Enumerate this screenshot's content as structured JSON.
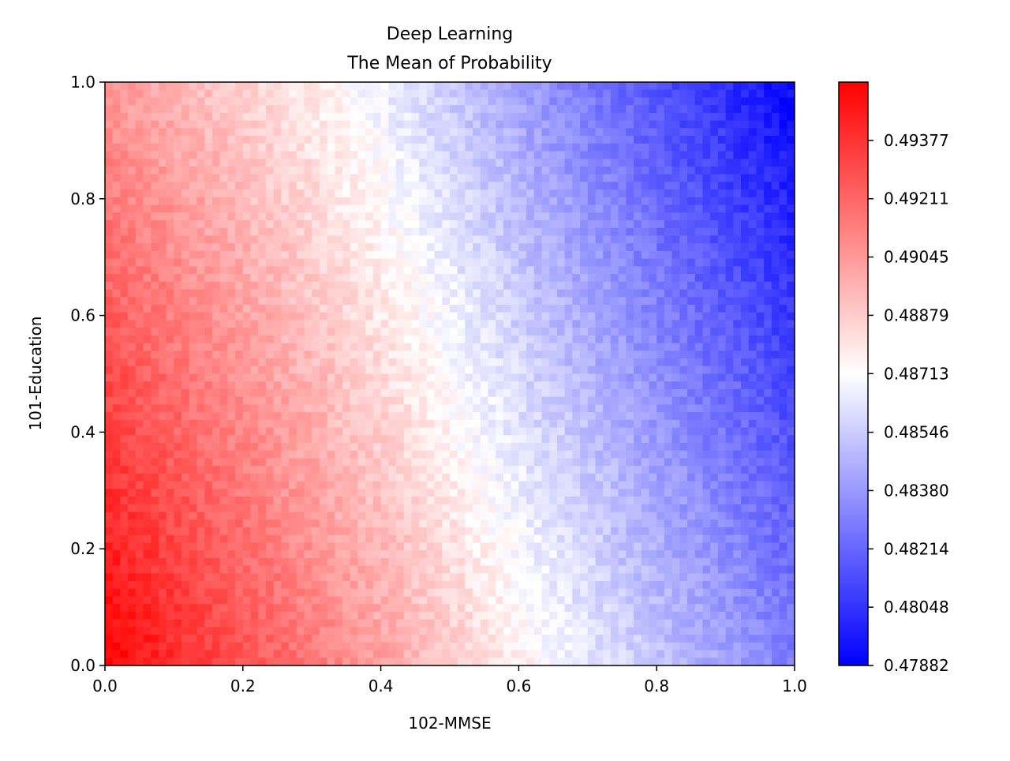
{
  "chart_data": {
    "type": "heatmap",
    "title": "Deep Learning",
    "subtitle": "The Mean of Probability",
    "xlabel": "102-MMSE",
    "ylabel": "101-Education",
    "xlim": [
      0.0,
      1.0
    ],
    "ylim": [
      0.0,
      1.0
    ],
    "x_ticks": [
      "0.0",
      "0.2",
      "0.4",
      "0.6",
      "0.8",
      "1.0"
    ],
    "y_ticks": [
      "0.0",
      "0.2",
      "0.4",
      "0.6",
      "0.8",
      "1.0"
    ],
    "colormap": "bwr",
    "colors": {
      "low": "#0000ff",
      "mid": "#ffffff",
      "high": "#ff0000"
    },
    "colorbar": {
      "min": 0.47882,
      "max": 0.49543,
      "ticks": [
        "0.49377",
        "0.49211",
        "0.49045",
        "0.48879",
        "0.48713",
        "0.48546",
        "0.48380",
        "0.48214",
        "0.48048",
        "0.47882"
      ]
    },
    "grid": false,
    "field": {
      "description_of_values": "approximate mean probability at corners of the x-y grid",
      "value_at_x0_y0": 0.4954,
      "value_at_x0_y1": 0.4905,
      "value_at_x1_y0": 0.483,
      "value_at_x1_y1": 0.479,
      "midpoint_x_at_y0": 0.64,
      "midpoint_x_at_y1": 0.36,
      "midpoint_value": 0.48713
    }
  }
}
